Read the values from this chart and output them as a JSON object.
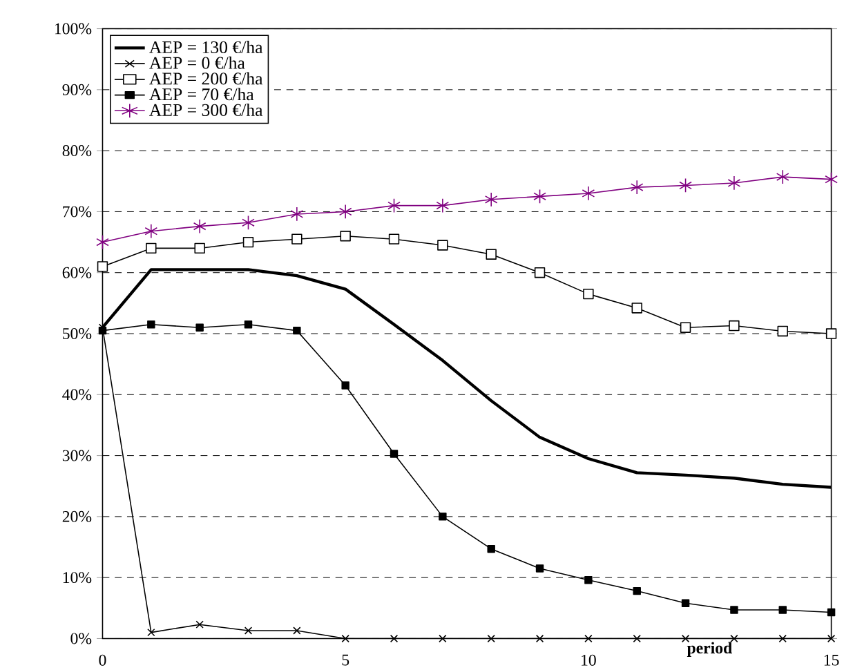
{
  "chart_data": {
    "type": "line",
    "xlabel": "period",
    "x": [
      0,
      1,
      2,
      3,
      4,
      5,
      6,
      7,
      8,
      9,
      10,
      11,
      12,
      13,
      14,
      15
    ],
    "series": [
      {
        "name": "AEP = 130 €/ha",
        "color": "#000000",
        "marker": "none",
        "values": [
          51,
          60.5,
          60.5,
          60.5,
          59.5,
          57.3,
          51.5,
          45.6,
          39,
          33,
          29.5,
          27.2,
          26.8,
          26.3,
          25.3,
          24.8
        ]
      },
      {
        "name": "AEP = 0 €/ha",
        "color": "#000000",
        "marker": "cross",
        "values": [
          51,
          1,
          2.3,
          1.3,
          1.3,
          0,
          0,
          0,
          0,
          0,
          0,
          0,
          0,
          0,
          0,
          0
        ]
      },
      {
        "name": "AEP = 200 €/ha",
        "color": "#000000",
        "marker": "square",
        "values": [
          61,
          64,
          64,
          65,
          65.5,
          66,
          65.5,
          64.5,
          63,
          60,
          56.5,
          54.2,
          51,
          51.3,
          50.4,
          50
        ]
      },
      {
        "name": "AEP = 70 €/ha",
        "color": "#000000",
        "marker": "square",
        "values": [
          50.5,
          51.5,
          51,
          51.5,
          50.5,
          41.5,
          30.3,
          20,
          14.7,
          11.5,
          9.6,
          7.8,
          5.8,
          4.7,
          4.7,
          4.3
        ]
      },
      {
        "name": "AEP = 300 €/ha",
        "color": "#800080",
        "marker": "cross",
        "values": [
          65,
          66.8,
          67.6,
          68.2,
          69.6,
          70,
          71,
          71,
          72,
          72.5,
          73,
          74,
          74.3,
          74.7,
          75.7,
          75.3
        ]
      }
    ],
    "xlim": [
      0,
      15
    ],
    "xticks": [
      0,
      5,
      10,
      15
    ],
    "ylim": [
      0,
      100
    ],
    "yticks": [
      {
        "value": 0,
        "label": "0%"
      },
      {
        "value": 10,
        "label": "10%"
      },
      {
        "value": 20,
        "label": "20%"
      },
      {
        "value": 30,
        "label": "30%"
      },
      {
        "value": 40,
        "label": "40%"
      },
      {
        "value": 50,
        "label": "50%"
      },
      {
        "value": 60,
        "label": "60%"
      },
      {
        "value": 70,
        "label": "70%"
      },
      {
        "value": 80,
        "label": "80%"
      },
      {
        "value": 90,
        "label": "90%"
      },
      {
        "value": 100,
        "label": "100%"
      }
    ],
    "grid": "y",
    "legend": "top left",
    "line_style": "solid"
  }
}
